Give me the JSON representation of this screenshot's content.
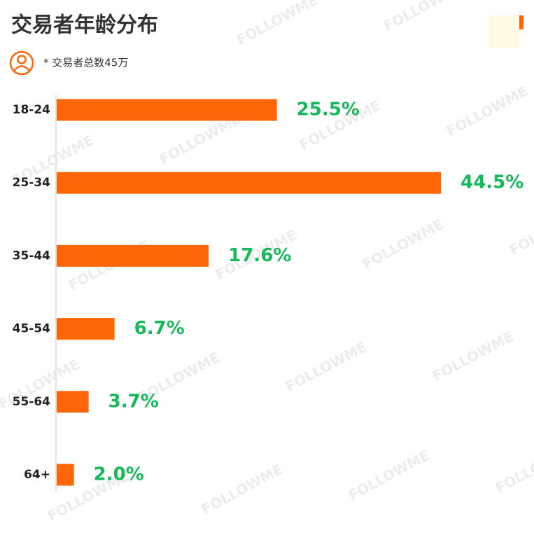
{
  "chart_data": {
    "type": "bar",
    "orientation": "horizontal",
    "title": "交易者年龄分布",
    "subtitle": "* 交易者总数45万",
    "watermark": "FOLLOWME",
    "categories": [
      "18-24",
      "25-34",
      "35-44",
      "45-54",
      "55-64",
      "64+"
    ],
    "values": [
      25.5,
      44.5,
      17.6,
      6.7,
      3.7,
      2.0
    ],
    "value_labels": [
      "25.5%",
      "44.5%",
      "17.6%",
      "6.7%",
      "3.7%",
      "2.0%"
    ],
    "color": "#ff6608",
    "label_color": "#17b85a"
  }
}
